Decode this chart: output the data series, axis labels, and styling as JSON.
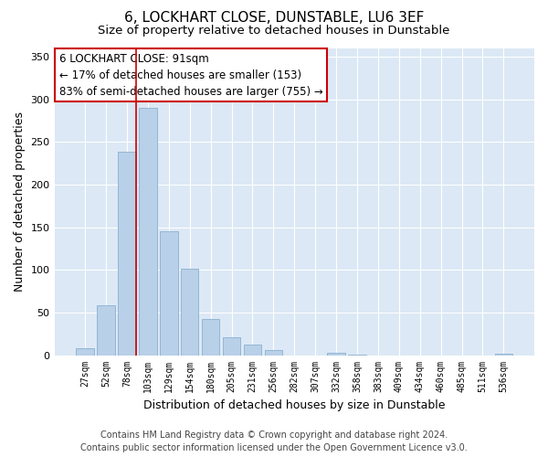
{
  "title": "6, LOCKHART CLOSE, DUNSTABLE, LU6 3EF",
  "subtitle": "Size of property relative to detached houses in Dunstable",
  "xlabel": "Distribution of detached houses by size in Dunstable",
  "ylabel": "Number of detached properties",
  "bar_labels": [
    "27sqm",
    "52sqm",
    "78sqm",
    "103sqm",
    "129sqm",
    "154sqm",
    "180sqm",
    "205sqm",
    "231sqm",
    "256sqm",
    "282sqm",
    "307sqm",
    "332sqm",
    "358sqm",
    "383sqm",
    "409sqm",
    "434sqm",
    "460sqm",
    "485sqm",
    "511sqm",
    "536sqm"
  ],
  "bar_values": [
    8,
    58,
    238,
    290,
    145,
    101,
    42,
    21,
    12,
    6,
    0,
    0,
    3,
    1,
    0,
    0,
    0,
    0,
    0,
    0,
    2
  ],
  "bar_color": "#b8d0e8",
  "bar_edge_color": "#8ab0d0",
  "property_line_color": "#cc0000",
  "annotation_line1": "6 LOCKHART CLOSE: 91sqm",
  "annotation_line2": "← 17% of detached houses are smaller (153)",
  "annotation_line3": "83% of semi-detached houses are larger (755) →",
  "annotation_box_facecolor": "#ffffff",
  "annotation_box_edgecolor": "#cc0000",
  "ylim": [
    0,
    360
  ],
  "yticks": [
    0,
    50,
    100,
    150,
    200,
    250,
    300,
    350
  ],
  "footer_line1": "Contains HM Land Registry data © Crown copyright and database right 2024.",
  "footer_line2": "Contains public sector information licensed under the Open Government Licence v3.0.",
  "bg_color": "#ffffff",
  "plot_bg_color": "#dce8f5",
  "grid_color": "#ffffff",
  "title_fontsize": 11,
  "subtitle_fontsize": 9.5,
  "ylabel_fontsize": 9,
  "xlabel_fontsize": 9,
  "tick_fontsize": 7,
  "annotation_fontsize": 8.5,
  "footer_fontsize": 7
}
